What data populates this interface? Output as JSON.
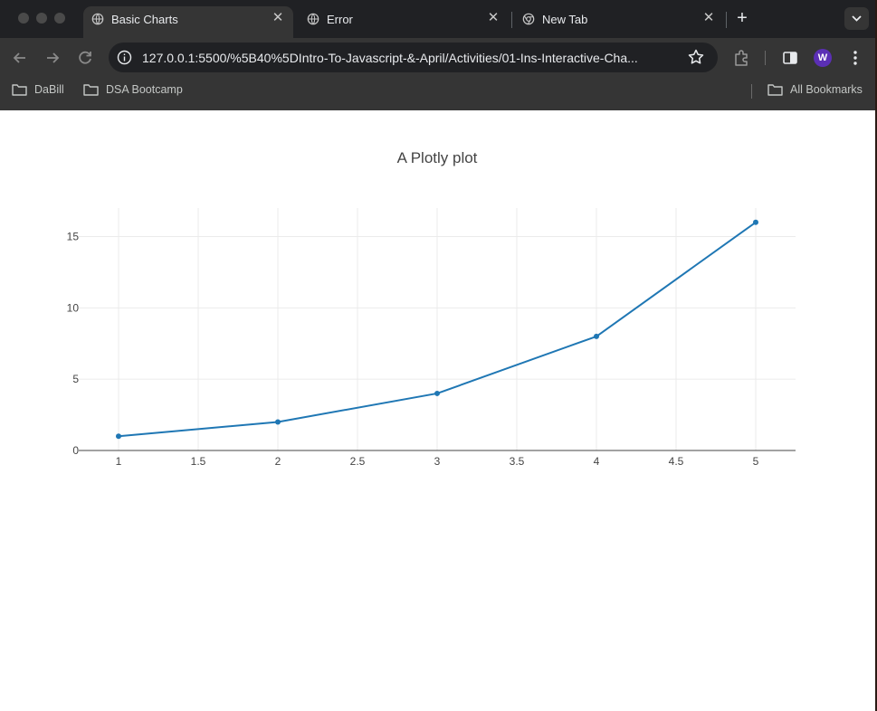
{
  "browser": {
    "tabs": [
      {
        "title": "Basic Charts",
        "active": true,
        "icon": "globe-icon"
      },
      {
        "title": "Error",
        "active": false,
        "icon": "globe-icon"
      },
      {
        "title": "New Tab",
        "active": false,
        "icon": "chrome-icon"
      }
    ],
    "close_glyph": "✕",
    "new_tab_glyph": "+",
    "url": "127.0.0.1:5500/%5B40%5DIntro-To-Javascript-&-April/Activities/01-Ins-Interactive-Cha...",
    "profile_initial": "W",
    "profile_color": "#5b2fb5",
    "bookmarks": [
      {
        "label": "DaBill"
      },
      {
        "label": "DSA Bootcamp"
      }
    ],
    "all_bookmarks_label": "All Bookmarks"
  },
  "chart_data": {
    "type": "line",
    "title": "A Plotly plot",
    "x": [
      1,
      2,
      3,
      4,
      5
    ],
    "series": [
      {
        "values": [
          1,
          2,
          4,
          8,
          16
        ],
        "color": "#1f77b4"
      }
    ],
    "xlim": [
      0.75,
      5.25
    ],
    "ylim": [
      0,
      17
    ],
    "xticks": [
      1,
      1.5,
      2,
      2.5,
      3,
      3.5,
      4,
      4.5,
      5
    ],
    "xtick_labels": [
      "1",
      "1.5",
      "2",
      "2.5",
      "3",
      "3.5",
      "4",
      "4.5",
      "5"
    ],
    "yticks": [
      0,
      5,
      10,
      15
    ],
    "ytick_labels": [
      "0",
      "5",
      "10",
      "15"
    ],
    "grid": true,
    "markers": true
  }
}
